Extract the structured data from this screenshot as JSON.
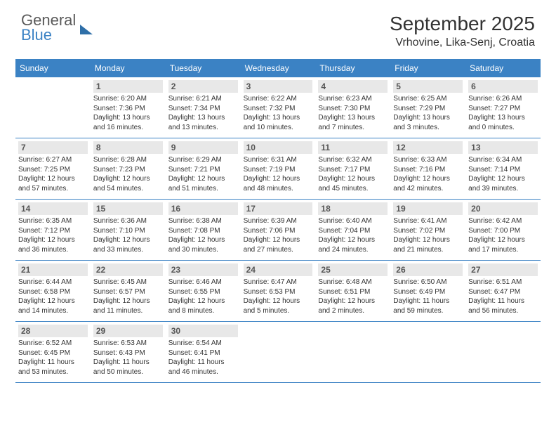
{
  "brand": {
    "line1": "General",
    "line2": "Blue"
  },
  "title": "September 2025",
  "location": "Vrhovine, Lika-Senj, Croatia",
  "colors": {
    "header_bg": "#3b82c4",
    "daynum_bg": "#e8e8e8",
    "text": "#333333",
    "brand_gray": "#5a5a5a",
    "brand_blue": "#3b82c4",
    "divider": "#3b82c4",
    "page_bg": "#ffffff"
  },
  "fonts": {
    "family": "Arial",
    "title_size": 28,
    "location_size": 16,
    "header_size": 12,
    "body_size": 10
  },
  "daynames": [
    "Sunday",
    "Monday",
    "Tuesday",
    "Wednesday",
    "Thursday",
    "Friday",
    "Saturday"
  ],
  "start_offset": 1,
  "days": [
    {
      "n": 1,
      "sunrise": "6:20 AM",
      "sunset": "7:36 PM",
      "daylight": "13 hours and 16 minutes."
    },
    {
      "n": 2,
      "sunrise": "6:21 AM",
      "sunset": "7:34 PM",
      "daylight": "13 hours and 13 minutes."
    },
    {
      "n": 3,
      "sunrise": "6:22 AM",
      "sunset": "7:32 PM",
      "daylight": "13 hours and 10 minutes."
    },
    {
      "n": 4,
      "sunrise": "6:23 AM",
      "sunset": "7:30 PM",
      "daylight": "13 hours and 7 minutes."
    },
    {
      "n": 5,
      "sunrise": "6:25 AM",
      "sunset": "7:29 PM",
      "daylight": "13 hours and 3 minutes."
    },
    {
      "n": 6,
      "sunrise": "6:26 AM",
      "sunset": "7:27 PM",
      "daylight": "13 hours and 0 minutes."
    },
    {
      "n": 7,
      "sunrise": "6:27 AM",
      "sunset": "7:25 PM",
      "daylight": "12 hours and 57 minutes."
    },
    {
      "n": 8,
      "sunrise": "6:28 AM",
      "sunset": "7:23 PM",
      "daylight": "12 hours and 54 minutes."
    },
    {
      "n": 9,
      "sunrise": "6:29 AM",
      "sunset": "7:21 PM",
      "daylight": "12 hours and 51 minutes."
    },
    {
      "n": 10,
      "sunrise": "6:31 AM",
      "sunset": "7:19 PM",
      "daylight": "12 hours and 48 minutes."
    },
    {
      "n": 11,
      "sunrise": "6:32 AM",
      "sunset": "7:17 PM",
      "daylight": "12 hours and 45 minutes."
    },
    {
      "n": 12,
      "sunrise": "6:33 AM",
      "sunset": "7:16 PM",
      "daylight": "12 hours and 42 minutes."
    },
    {
      "n": 13,
      "sunrise": "6:34 AM",
      "sunset": "7:14 PM",
      "daylight": "12 hours and 39 minutes."
    },
    {
      "n": 14,
      "sunrise": "6:35 AM",
      "sunset": "7:12 PM",
      "daylight": "12 hours and 36 minutes."
    },
    {
      "n": 15,
      "sunrise": "6:36 AM",
      "sunset": "7:10 PM",
      "daylight": "12 hours and 33 minutes."
    },
    {
      "n": 16,
      "sunrise": "6:38 AM",
      "sunset": "7:08 PM",
      "daylight": "12 hours and 30 minutes."
    },
    {
      "n": 17,
      "sunrise": "6:39 AM",
      "sunset": "7:06 PM",
      "daylight": "12 hours and 27 minutes."
    },
    {
      "n": 18,
      "sunrise": "6:40 AM",
      "sunset": "7:04 PM",
      "daylight": "12 hours and 24 minutes."
    },
    {
      "n": 19,
      "sunrise": "6:41 AM",
      "sunset": "7:02 PM",
      "daylight": "12 hours and 21 minutes."
    },
    {
      "n": 20,
      "sunrise": "6:42 AM",
      "sunset": "7:00 PM",
      "daylight": "12 hours and 17 minutes."
    },
    {
      "n": 21,
      "sunrise": "6:44 AM",
      "sunset": "6:58 PM",
      "daylight": "12 hours and 14 minutes."
    },
    {
      "n": 22,
      "sunrise": "6:45 AM",
      "sunset": "6:57 PM",
      "daylight": "12 hours and 11 minutes."
    },
    {
      "n": 23,
      "sunrise": "6:46 AM",
      "sunset": "6:55 PM",
      "daylight": "12 hours and 8 minutes."
    },
    {
      "n": 24,
      "sunrise": "6:47 AM",
      "sunset": "6:53 PM",
      "daylight": "12 hours and 5 minutes."
    },
    {
      "n": 25,
      "sunrise": "6:48 AM",
      "sunset": "6:51 PM",
      "daylight": "12 hours and 2 minutes."
    },
    {
      "n": 26,
      "sunrise": "6:50 AM",
      "sunset": "6:49 PM",
      "daylight": "11 hours and 59 minutes."
    },
    {
      "n": 27,
      "sunrise": "6:51 AM",
      "sunset": "6:47 PM",
      "daylight": "11 hours and 56 minutes."
    },
    {
      "n": 28,
      "sunrise": "6:52 AM",
      "sunset": "6:45 PM",
      "daylight": "11 hours and 53 minutes."
    },
    {
      "n": 29,
      "sunrise": "6:53 AM",
      "sunset": "6:43 PM",
      "daylight": "11 hours and 50 minutes."
    },
    {
      "n": 30,
      "sunrise": "6:54 AM",
      "sunset": "6:41 PM",
      "daylight": "11 hours and 46 minutes."
    }
  ],
  "labels": {
    "sunrise": "Sunrise:",
    "sunset": "Sunset:",
    "daylight": "Daylight:"
  }
}
